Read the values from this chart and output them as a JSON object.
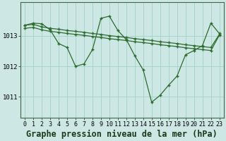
{
  "background_color": "#cde8e4",
  "plot_bg_color": "#cde8e4",
  "grid_color": "#a8d4cc",
  "line_color": "#2d6a2d",
  "title": "Graphe pression niveau de la mer (hPa)",
  "ylabel_ticks": [
    1011,
    1012,
    1013
  ],
  "xlim": [
    -0.5,
    23.5
  ],
  "ylim": [
    1010.3,
    1014.1
  ],
  "s1_y": [
    1013.35,
    1013.38,
    1013.3,
    1013.25,
    1013.22,
    1013.18,
    1013.15,
    1013.12,
    1013.08,
    1013.05,
    1013.01,
    1012.98,
    1012.95,
    1012.91,
    1012.88,
    1012.85,
    1012.81,
    1012.78,
    1012.75,
    1012.71,
    1012.68,
    1012.65,
    1012.62,
    1013.05
  ],
  "s2_y": [
    1013.25,
    1013.28,
    1013.2,
    1013.15,
    1013.12,
    1013.08,
    1013.05,
    1013.02,
    1012.98,
    1012.95,
    1012.91,
    1012.88,
    1012.85,
    1012.81,
    1012.78,
    1012.75,
    1012.71,
    1012.68,
    1012.65,
    1012.61,
    1012.58,
    1012.55,
    1012.52,
    1013.02
  ],
  "s3_y": [
    1013.35,
    1013.42,
    1013.4,
    1013.2,
    1012.75,
    1012.62,
    1012.0,
    1012.08,
    1012.55,
    1013.58,
    1013.65,
    1013.18,
    1012.88,
    1012.35,
    1011.88,
    1010.82,
    1011.05,
    1011.38,
    1011.68,
    1012.38,
    1012.52,
    1012.68,
    1013.42,
    1013.08
  ],
  "xtick_labels": [
    "0",
    "1",
    "2",
    "3",
    "4",
    "5",
    "6",
    "7",
    "8",
    "9",
    "10",
    "11",
    "12",
    "13",
    "14",
    "15",
    "16",
    "17",
    "18",
    "19",
    "20",
    "21",
    "22",
    "23"
  ],
  "title_fontsize": 8.5,
  "tick_fontsize": 6.0
}
